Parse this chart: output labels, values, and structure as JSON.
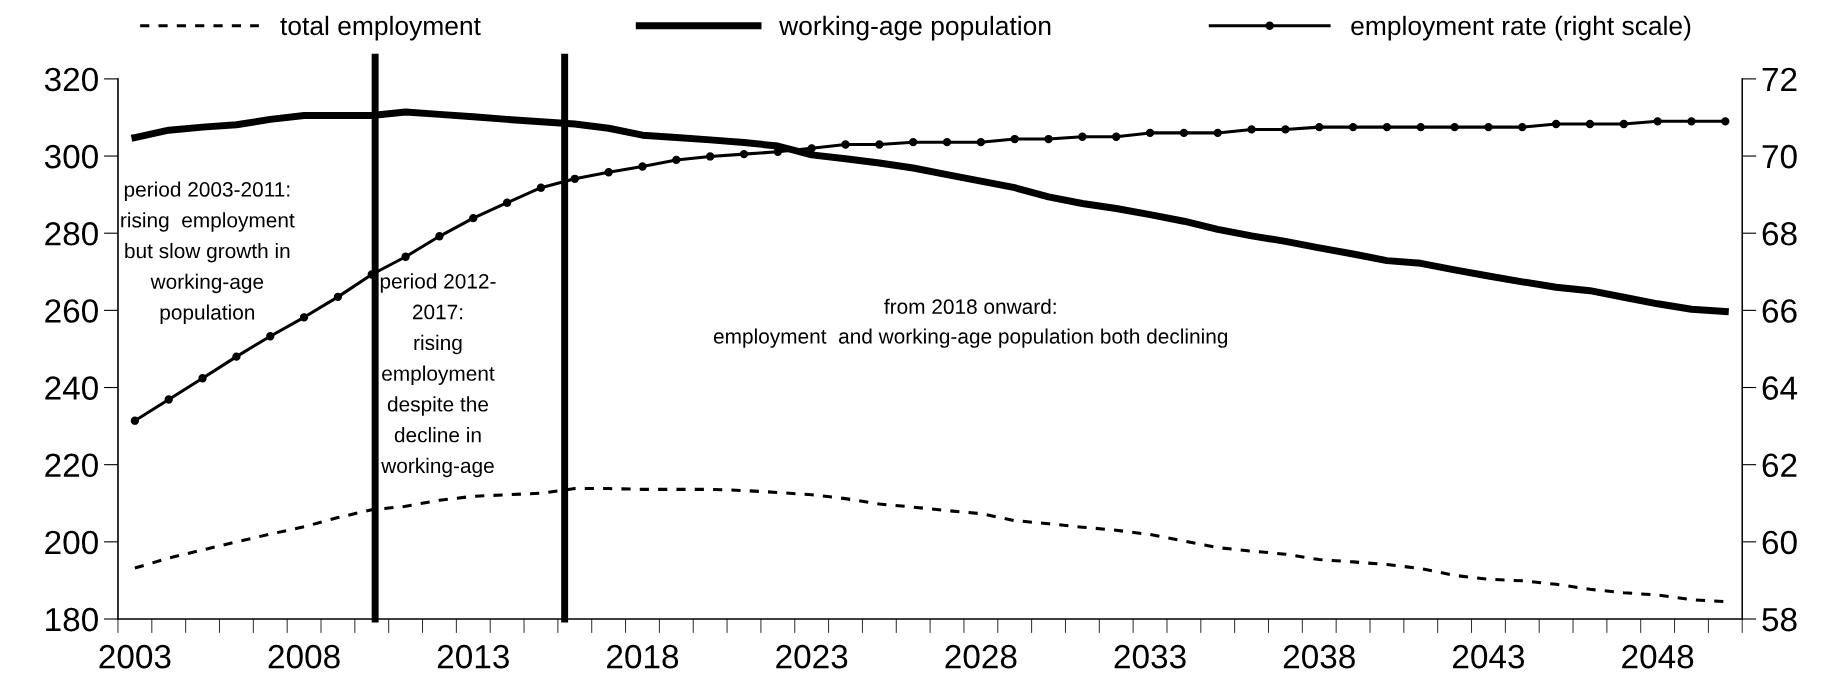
{
  "chart_data": {
    "type": "line",
    "x": [
      2003,
      2004,
      2005,
      2006,
      2007,
      2008,
      2009,
      2010,
      2011,
      2012,
      2013,
      2014,
      2015,
      2016,
      2017,
      2018,
      2019,
      2020,
      2021,
      2022,
      2023,
      2024,
      2025,
      2026,
      2027,
      2028,
      2029,
      2030,
      2031,
      2032,
      2033,
      2034,
      2035,
      2036,
      2037,
      2038,
      2039,
      2040,
      2041,
      2042,
      2043,
      2044,
      2045,
      2046,
      2047,
      2048,
      2049,
      2050
    ],
    "series": [
      {
        "name": "total employment",
        "color": "#000000",
        "line_style": "dashed",
        "marker": "none",
        "values": [
          193.2,
          195.8,
          197.9,
          200.0,
          202.0,
          203.9,
          206.3,
          208.3,
          209.2,
          210.8,
          211.8,
          212.2,
          212.6,
          213.8,
          213.8,
          213.6,
          213.6,
          213.6,
          213.3,
          212.8,
          212.2,
          211.2,
          209.8,
          209.0,
          208.1,
          207.3,
          205.5,
          204.7,
          203.8,
          203.0,
          201.9,
          200.2,
          198.5,
          197.6,
          196.8,
          195.4,
          194.8,
          194.1,
          193.1,
          191.3,
          190.3,
          189.9,
          189.0,
          187.7,
          186.8,
          186.2,
          185.0,
          184.5
        ]
      },
      {
        "name": "working-age population",
        "color": "#000000",
        "line_style": "solid",
        "marker": "none",
        "values": [
          304.8,
          306.7,
          307.5,
          308.1,
          309.5,
          310.5,
          310.5,
          310.5,
          311.4,
          310.8,
          310.2,
          309.5,
          308.9,
          308.3,
          307.2,
          305.4,
          304.8,
          304.2,
          303.5,
          302.6,
          300.3,
          299.3,
          298.2,
          296.9,
          295.2,
          293.5,
          291.8,
          289.4,
          287.7,
          286.4,
          284.8,
          283.1,
          281.0,
          279.3,
          277.9,
          276.2,
          274.6,
          272.9,
          272.2,
          270.5,
          268.9,
          267.4,
          266.0,
          265.1,
          263.4,
          261.7,
          260.3,
          259.7
        ]
      },
      {
        "name": "employment rate (right scale)",
        "color": "#000000",
        "line_style": "solid",
        "marker": "circle",
        "axis": "y2",
        "values": [
          63.14,
          63.69,
          64.24,
          64.8,
          65.33,
          65.82,
          66.35,
          66.93,
          67.39,
          67.92,
          68.39,
          68.79,
          69.18,
          69.41,
          69.58,
          69.73,
          69.9,
          69.99,
          70.05,
          70.11,
          70.2,
          70.3,
          70.3,
          70.36,
          70.36,
          70.36,
          70.44,
          70.44,
          70.5,
          70.5,
          70.6,
          70.6,
          70.6,
          70.69,
          70.69,
          70.75,
          70.75,
          70.75,
          70.75,
          70.75,
          70.75,
          70.75,
          70.83,
          70.83,
          70.83,
          70.9,
          70.9,
          70.9
        ]
      }
    ],
    "xlim": [
      2002.5,
      2050.5
    ],
    "xticks": [
      2003,
      2008,
      2013,
      2018,
      2023,
      2028,
      2033,
      2038,
      2043,
      2048
    ],
    "ylim": [
      180,
      320
    ],
    "yticks": [
      180,
      200,
      220,
      240,
      260,
      280,
      300,
      320
    ],
    "y2lim": [
      58,
      72
    ],
    "y2ticks": [
      58,
      60,
      62,
      64,
      66,
      68,
      70,
      72
    ],
    "ref_lines": [
      {
        "axis": "x",
        "value": 2010.1,
        "color": "#000000"
      },
      {
        "axis": "x",
        "value": 2015.7,
        "color": "#000000"
      }
    ],
    "annotations": [
      "period 2003-2011:\nrising  employment\nbut slow growth in\nworking-age\npopulation",
      "period 2012-\n2017:\nrising\nemployment\ndespite the\ndecline in\nworking-age",
      "from 2018 onward:",
      "employment  and working-age population both declining"
    ],
    "legend": "top",
    "grid": false
  }
}
